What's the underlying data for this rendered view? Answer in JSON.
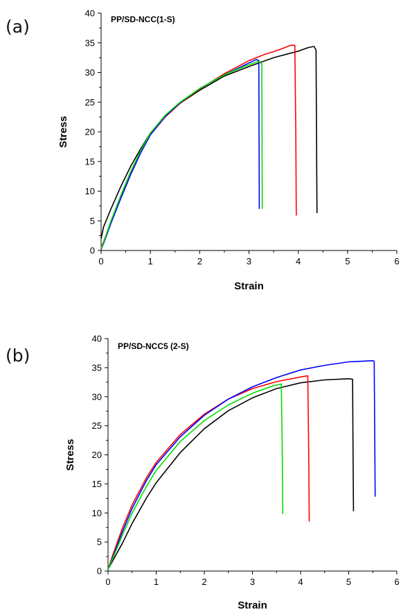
{
  "chart_data": [
    {
      "type": "line",
      "panel_label": "(a)",
      "title": "PP/SD-NCC(1-S)",
      "xlabel": "Strain",
      "ylabel": "Stress",
      "xlim": [
        0,
        6
      ],
      "ylim": [
        0,
        40
      ],
      "xticks": [
        "0",
        "1",
        "2",
        "3",
        "4",
        "5",
        "6"
      ],
      "yticks": [
        "0",
        "5",
        "10",
        "15",
        "20",
        "25",
        "30",
        "35",
        "40"
      ],
      "grid": false,
      "legend": "none",
      "series": [
        {
          "color": "#000000",
          "x": [
            0,
            0.05,
            0.2,
            0.4,
            0.6,
            0.8,
            1.0,
            1.3,
            1.6,
            2.0,
            2.5,
            3.0,
            3.5,
            4.0,
            4.2,
            4.32,
            4.36,
            4.37,
            4.38
          ],
          "y": [
            2.0,
            4.0,
            7.0,
            10.8,
            14.2,
            17.1,
            19.8,
            22.6,
            24.8,
            27.0,
            29.4,
            31.0,
            32.5,
            33.6,
            34.2,
            34.4,
            33.8,
            20.0,
            6.3
          ]
        },
        {
          "color": "#ff0000",
          "x": [
            0,
            0.05,
            0.2,
            0.4,
            0.6,
            0.8,
            1.0,
            1.3,
            1.6,
            2.0,
            2.5,
            3.0,
            3.3,
            3.6,
            3.85,
            3.93,
            3.95,
            3.96
          ],
          "y": [
            0.5,
            1.5,
            4.8,
            9.0,
            13.0,
            16.5,
            19.5,
            22.5,
            24.8,
            27.2,
            29.8,
            32.0,
            33.0,
            33.8,
            34.6,
            34.6,
            20.0,
            5.9
          ]
        },
        {
          "color": "#0000ff",
          "x": [
            0,
            0.05,
            0.2,
            0.4,
            0.6,
            0.8,
            1.0,
            1.3,
            1.6,
            2.0,
            2.5,
            2.9,
            3.15,
            3.2,
            3.21
          ],
          "y": [
            0.2,
            1.2,
            4.6,
            8.8,
            12.8,
            16.4,
            19.5,
            22.6,
            24.9,
            27.3,
            29.6,
            31.2,
            32.2,
            32.0,
            7.0
          ]
        },
        {
          "color": "#00dd00",
          "x": [
            0,
            0.05,
            0.2,
            0.4,
            0.6,
            0.8,
            1.0,
            1.3,
            1.6,
            2.0,
            2.5,
            2.9,
            3.2,
            3.26,
            3.27
          ],
          "y": [
            0.3,
            1.4,
            5.0,
            9.3,
            13.3,
            16.8,
            19.8,
            22.8,
            25.0,
            27.3,
            29.6,
            31.0,
            31.9,
            31.5,
            7.0
          ]
        }
      ]
    },
    {
      "type": "line",
      "panel_label": "(b)",
      "title": "PP/SD-NCC5 (2-S)",
      "xlabel": "Strain",
      "ylabel": "Stress",
      "xlim": [
        0,
        6
      ],
      "ylim": [
        0,
        40
      ],
      "xticks": [
        "0",
        "1",
        "2",
        "3",
        "4",
        "5",
        "6"
      ],
      "yticks": [
        "0",
        "5",
        "10",
        "15",
        "20",
        "25",
        "30",
        "35",
        "40"
      ],
      "grid": false,
      "legend": "none",
      "series": [
        {
          "color": "#000000",
          "x": [
            0,
            0.1,
            0.3,
            0.5,
            0.8,
            1.0,
            1.5,
            2.0,
            2.5,
            3.0,
            3.5,
            4.0,
            4.5,
            5.0,
            5.08,
            5.09,
            5.1
          ],
          "y": [
            0.3,
            1.8,
            4.8,
            8.2,
            12.6,
            15.2,
            20.4,
            24.5,
            27.6,
            29.8,
            31.4,
            32.4,
            32.9,
            33.1,
            33.0,
            20.0,
            10.3
          ]
        },
        {
          "color": "#ff0000",
          "x": [
            0,
            0.1,
            0.3,
            0.5,
            0.8,
            1.0,
            1.5,
            2.0,
            2.5,
            3.0,
            3.5,
            4.0,
            4.15,
            4.17,
            4.18
          ],
          "y": [
            0.3,
            2.8,
            7.4,
            11.4,
            16.1,
            18.7,
            23.5,
            27.0,
            29.6,
            31.4,
            32.6,
            33.4,
            33.6,
            20.0,
            8.5
          ]
        },
        {
          "color": "#0000ff",
          "x": [
            0,
            0.1,
            0.3,
            0.5,
            0.8,
            1.0,
            1.5,
            2.0,
            2.5,
            3.0,
            3.5,
            4.0,
            4.5,
            5.0,
            5.5,
            5.53,
            5.54,
            5.55
          ],
          "y": [
            0.3,
            2.4,
            6.8,
            10.8,
            15.6,
            18.3,
            23.1,
            26.8,
            29.6,
            31.7,
            33.3,
            34.6,
            35.4,
            36.0,
            36.2,
            36.1,
            25.0,
            12.8
          ]
        },
        {
          "color": "#00dd00",
          "x": [
            0,
            0.1,
            0.3,
            0.5,
            0.8,
            1.0,
            1.5,
            2.0,
            2.5,
            3.0,
            3.4,
            3.6,
            3.62,
            3.63
          ],
          "y": [
            0.3,
            2.2,
            6.2,
            10.0,
            14.6,
            17.3,
            22.3,
            25.9,
            28.6,
            30.6,
            31.8,
            32.2,
            20.0,
            9.8
          ]
        }
      ]
    }
  ]
}
